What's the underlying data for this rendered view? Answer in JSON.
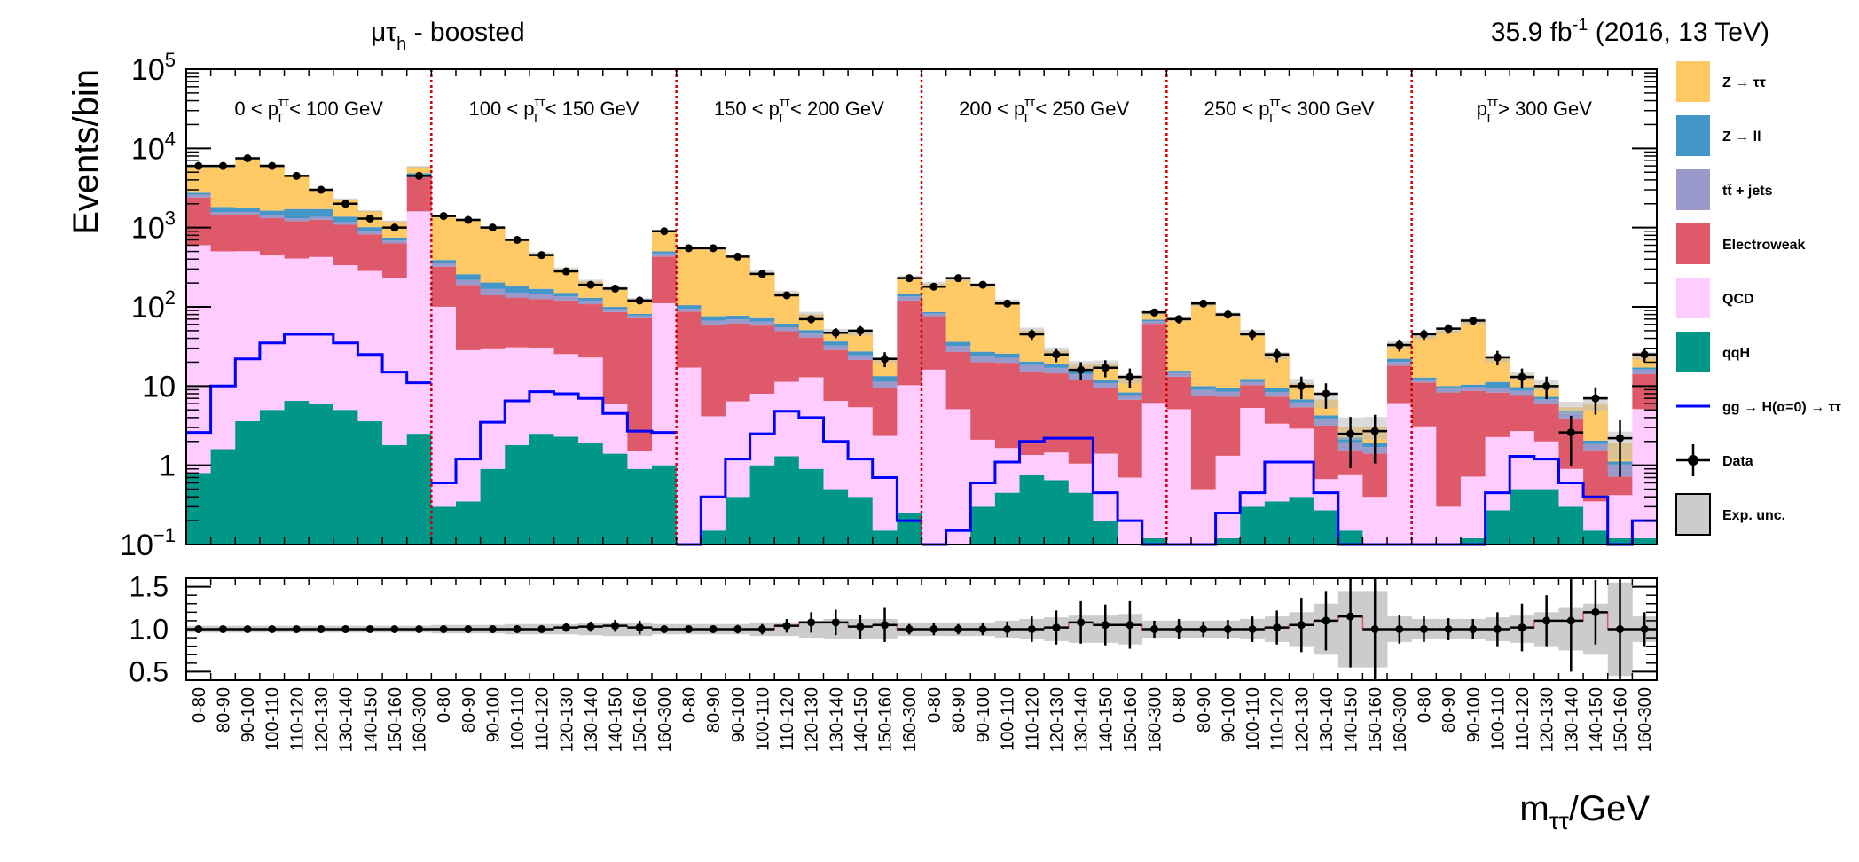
{
  "header": {
    "channel_main": "μτ",
    "channel_sub": "h",
    "channel_rest": " - boosted",
    "lumi_prefix": "35.9 fb",
    "lumi_exp": "-1",
    "lumi_suffix": " (2016, 13 TeV)"
  },
  "main_plot": {
    "ylabel": "Events/bin",
    "y_ticks": [
      {
        "value": 0.1,
        "base": "10",
        "exp": "−1"
      },
      {
        "value": 1,
        "base": "1",
        "exp": ""
      },
      {
        "value": 10,
        "base": "10",
        "exp": ""
      },
      {
        "value": 100,
        "base": "10",
        "exp": "2"
      },
      {
        "value": 1000,
        "base": "10",
        "exp": "3"
      },
      {
        "value": 10000,
        "base": "10",
        "exp": "4"
      },
      {
        "value": 100000,
        "base": "10",
        "exp": "5"
      }
    ]
  },
  "ratio_plot": {
    "y_ticks": [
      "0.5",
      "1.0",
      "1.5"
    ]
  },
  "xlabel_main": "m",
  "xlabel_sub": "ττ",
  "xlabel_rest": "/GeV",
  "categories": [
    {
      "pre": "0 < p",
      "sub": "T",
      "sup": "ττ",
      "post": " < 100 GeV"
    },
    {
      "pre": "100 < p",
      "sub": "T",
      "sup": "ττ",
      "post": " < 150 GeV"
    },
    {
      "pre": "150 < p",
      "sub": "T",
      "sup": "ττ",
      "post": " < 200 GeV"
    },
    {
      "pre": "200 < p",
      "sub": "T",
      "sup": "ττ",
      "post": " < 250 GeV"
    },
    {
      "pre": "250 < p",
      "sub": "T",
      "sup": "ττ",
      "post": " < 300 GeV"
    },
    {
      "pre": "p",
      "sub": "T",
      "sup": "ττ",
      "post": " > 300 GeV"
    }
  ],
  "legend": [
    {
      "label": "Z → ττ",
      "kind": "fill",
      "color": "#ffc966"
    },
    {
      "label": "Z → ll",
      "kind": "fill",
      "color": "#4496c8"
    },
    {
      "label": "tt̄ + jets",
      "kind": "fill",
      "color": "#9999cc"
    },
    {
      "label": "Electroweak",
      "kind": "fill",
      "color": "#de5a6a"
    },
    {
      "label": "QCD",
      "kind": "fill",
      "color": "#ffccff"
    },
    {
      "label": "qqH",
      "kind": "fill",
      "color": "#009688"
    },
    {
      "label": "gg → H(α=0) → ττ",
      "kind": "line",
      "color": "#0000ff"
    },
    {
      "label": "Data",
      "kind": "marker",
      "color": "#000000"
    },
    {
      "label": "Exp. unc.",
      "kind": "band",
      "color": "#cccccc"
    }
  ],
  "chart_data": {
    "type": "bar",
    "stacked": true,
    "log_y": true,
    "ylim": [
      0.1,
      100000
    ],
    "ratio_ylim": [
      0.4,
      1.6
    ],
    "bin_labels": [
      "0-80",
      "80-90",
      "90-100",
      "100-110",
      "110-120",
      "120-130",
      "130-140",
      "140-150",
      "150-160",
      "160-300"
    ],
    "bins": [
      [
        6000,
        6000,
        7500,
        6000,
        4500,
        3000,
        2000,
        1300,
        1000,
        4500
      ],
      [
        1400,
        1250,
        1000,
        700,
        450,
        280,
        190,
        170,
        120,
        900
      ],
      [
        550,
        550,
        430,
        260,
        140,
        70,
        47,
        50,
        22,
        230
      ],
      [
        180,
        230,
        190,
        110,
        45,
        25,
        16,
        17,
        13,
        85
      ],
      [
        70,
        110,
        80,
        45,
        25,
        10,
        8,
        2.5,
        2.7,
        33
      ],
      [
        45,
        53,
        67,
        23,
        13,
        10,
        2.6,
        7,
        2.2,
        25
      ]
    ],
    "series": [
      {
        "name": "QCD",
        "values": [
          [
            600,
            500,
            500,
            440,
            400,
            420,
            330,
            280,
            230,
            1600
          ],
          [
            100,
            28,
            29,
            29,
            28,
            23,
            21,
            4.5,
            0.6,
            110
          ],
          [
            17,
            4,
            6,
            7,
            10,
            12,
            6,
            5,
            2.2,
            10
          ],
          [
            16,
            5,
            1.8,
            1.2,
            0.6,
            0.8,
            0.6,
            1.2,
            0.6,
            6
          ],
          [
            5,
            0.4,
            1.2,
            5,
            3,
            2.5,
            0.4,
            0.6,
            0.3,
            6
          ],
          [
            3,
            0.2,
            0.6,
            2,
            2.2,
            1.5,
            0.6,
            0.2,
            0.3,
            5
          ]
        ]
      },
      {
        "name": "Electroweak",
        "values": [
          [
            1800,
            950,
            950,
            870,
            800,
            830,
            750,
            540,
            400,
            2700
          ],
          [
            220,
            160,
            110,
            100,
            95,
            95,
            85,
            80,
            70,
            320
          ],
          [
            70,
            55,
            55,
            50,
            38,
            28,
            22,
            16,
            7,
            110
          ],
          [
            60,
            22,
            18,
            18,
            14,
            13,
            11,
            8,
            6,
            55
          ],
          [
            8,
            7,
            6,
            5,
            4,
            2.5,
            2.5,
            0.8,
            1,
            12
          ],
          [
            8,
            8,
            8,
            6,
            5,
            4,
            3,
            1.2,
            0.3,
            9
          ]
        ]
      },
      {
        "name": "tt̄ + jets",
        "values": [
          [
            200,
            120,
            120,
            120,
            110,
            110,
            90,
            70,
            55,
            250
          ],
          [
            40,
            30,
            28,
            20,
            18,
            15,
            12,
            8,
            6,
            40
          ],
          [
            8,
            8,
            8,
            7,
            6,
            5,
            4,
            3,
            2,
            15
          ],
          [
            6,
            5,
            4,
            3,
            3,
            2.5,
            2,
            1.5,
            1,
            5
          ],
          [
            1.5,
            1.5,
            1.2,
            1,
            1,
            0.8,
            0.6,
            0.4,
            0.3,
            2
          ],
          [
            1,
            1,
            1,
            1,
            1,
            0.8,
            0.6,
            0.3,
            0.3,
            2
          ]
        ]
      },
      {
        "name": "Z → ll",
        "values": [
          [
            150,
            250,
            180,
            200,
            400,
            350,
            200,
            120,
            60,
            300
          ],
          [
            30,
            40,
            35,
            30,
            25,
            15,
            10,
            6,
            4,
            30
          ],
          [
            10,
            9,
            8,
            7,
            6,
            5,
            4,
            3,
            2,
            10
          ],
          [
            4,
            4,
            3,
            3,
            2,
            2,
            1.5,
            1,
            0.6,
            3
          ],
          [
            1,
            1,
            1,
            1,
            1,
            0.6,
            0.5,
            0.3,
            0.2,
            2
          ],
          [
            0.7,
            0.7,
            0.7,
            2,
            1,
            0.5,
            0.3,
            0.2,
            0.1,
            1
          ]
        ]
      },
      {
        "name": "Z → ττ",
        "values": [
          [
            3200,
            4000,
            5700,
            4500,
            2800,
            1300,
            900,
            600,
            450,
            1000
          ],
          [
            1000,
            1000,
            800,
            520,
            300,
            150,
            80,
            70,
            40,
            400
          ],
          [
            450,
            470,
            360,
            200,
            90,
            30,
            12,
            20,
            8,
            90
          ],
          [
            110,
            190,
            160,
            90,
            30,
            9,
            3,
            7,
            4,
            15
          ],
          [
            55,
            100,
            70,
            35,
            15,
            4,
            2.5,
            0.8,
            1.2,
            12
          ],
          [
            30,
            40,
            55,
            11,
            4,
            3,
            0.6,
            4,
            0.8,
            7
          ]
        ]
      },
      {
        "name": "qqH",
        "values": [
          [
            0.8,
            1.6,
            3.6,
            5,
            6.5,
            6,
            5,
            3.6,
            1.8,
            2.5
          ],
          [
            0.3,
            0.35,
            0.9,
            1.8,
            2.5,
            2.3,
            1.9,
            1.4,
            0.9,
            1
          ],
          [
            0.1,
            0.15,
            0.4,
            1,
            1.3,
            0.9,
            0.5,
            0.4,
            0.15,
            0.25
          ],
          [
            0.1,
            0.1,
            0.3,
            0.45,
            0.75,
            0.65,
            0.45,
            0.2,
            0.1,
            0.12
          ],
          [
            0.1,
            0.1,
            0.12,
            0.3,
            0.35,
            0.4,
            0.27,
            0.15,
            0.1,
            0.1
          ],
          [
            0.1,
            0.1,
            0.12,
            0.27,
            0.5,
            0.5,
            0.3,
            0.15,
            0.12,
            0.12
          ]
        ]
      },
      {
        "name": "gg → H(α=0) → ττ",
        "values": [
          [
            2.6,
            10,
            22,
            35,
            45,
            45,
            35,
            25,
            15,
            11
          ],
          [
            0.6,
            1.2,
            3.5,
            6.5,
            8.5,
            8,
            7,
            4.5,
            2.7,
            2.6
          ],
          [
            0.1,
            0.4,
            1.2,
            2.5,
            4.8,
            4,
            2,
            1.2,
            0.7,
            0.2
          ],
          [
            0.1,
            0.15,
            0.6,
            1.1,
            2,
            2.2,
            2.2,
            0.45,
            0.2,
            0.1
          ],
          [
            0.1,
            0.1,
            0.25,
            0.45,
            1.1,
            1.1,
            0.45,
            0.1,
            0.1,
            0.1
          ],
          [
            0.1,
            0.1,
            0.1,
            0.45,
            1.3,
            1.2,
            0.6,
            0.4,
            0.1,
            0.2
          ]
        ]
      }
    ],
    "data": [
      [
        6000,
        6000,
        7500,
        6000,
        4500,
        3000,
        2000,
        1300,
        1000,
        4500
      ],
      [
        1400,
        1250,
        1000,
        700,
        450,
        280,
        190,
        170,
        120,
        900
      ],
      [
        550,
        550,
        430,
        260,
        140,
        70,
        47,
        50,
        22,
        230
      ],
      [
        180,
        230,
        190,
        110,
        45,
        25,
        16,
        17,
        13,
        85
      ],
      [
        70,
        110,
        80,
        45,
        25,
        10,
        8,
        2.5,
        2.7,
        33
      ],
      [
        45,
        53,
        67,
        23,
        13,
        10,
        2.6,
        7,
        2.2,
        25
      ]
    ],
    "ratio": [
      [
        1,
        1,
        1,
        1,
        1,
        1,
        1,
        1,
        1,
        1
      ],
      [
        1,
        1,
        1,
        1,
        1,
        1.02,
        1.03,
        1.04,
        1.02,
        1
      ],
      [
        1,
        1,
        1,
        1,
        1.04,
        1.08,
        1.08,
        1.03,
        1.05,
        1
      ],
      [
        1,
        1,
        1,
        1,
        1,
        1.02,
        1.08,
        1.05,
        1.05,
        1
      ],
      [
        1,
        1,
        1,
        1,
        1.02,
        1.05,
        1.1,
        1.15,
        1,
        1
      ],
      [
        1,
        1,
        1,
        1,
        1.02,
        1.1,
        1.1,
        1.2,
        1,
        1
      ]
    ],
    "ratio_err": [
      [
        0.01,
        0.01,
        0.01,
        0.01,
        0.01,
        0.01,
        0.01,
        0.02,
        0.02,
        0.01
      ],
      [
        0.02,
        0.02,
        0.02,
        0.03,
        0.04,
        0.05,
        0.06,
        0.07,
        0.08,
        0.03
      ],
      [
        0.04,
        0.04,
        0.05,
        0.06,
        0.08,
        0.12,
        0.15,
        0.14,
        0.2,
        0.06
      ],
      [
        0.07,
        0.06,
        0.07,
        0.09,
        0.15,
        0.2,
        0.25,
        0.24,
        0.28,
        0.1
      ],
      [
        0.12,
        0.09,
        0.11,
        0.15,
        0.2,
        0.32,
        0.35,
        0.6,
        0.6,
        0.17
      ],
      [
        0.15,
        0.13,
        0.12,
        0.2,
        0.28,
        0.3,
        0.6,
        0.38,
        0.68,
        0.2
      ]
    ],
    "band": [
      [
        0.04,
        0.04,
        0.04,
        0.04,
        0.04,
        0.04,
        0.04,
        0.04,
        0.04,
        0.04
      ],
      [
        0.05,
        0.05,
        0.05,
        0.06,
        0.06,
        0.06,
        0.07,
        0.08,
        0.08,
        0.06
      ],
      [
        0.06,
        0.06,
        0.06,
        0.08,
        0.08,
        0.1,
        0.12,
        0.12,
        0.12,
        0.08
      ],
      [
        0.08,
        0.08,
        0.08,
        0.1,
        0.12,
        0.14,
        0.16,
        0.16,
        0.18,
        0.1
      ],
      [
        0.1,
        0.1,
        0.1,
        0.12,
        0.15,
        0.2,
        0.3,
        0.45,
        0.45,
        0.15
      ],
      [
        0.12,
        0.12,
        0.12,
        0.14,
        0.16,
        0.2,
        0.25,
        0.3,
        0.55,
        0.15
      ]
    ]
  }
}
